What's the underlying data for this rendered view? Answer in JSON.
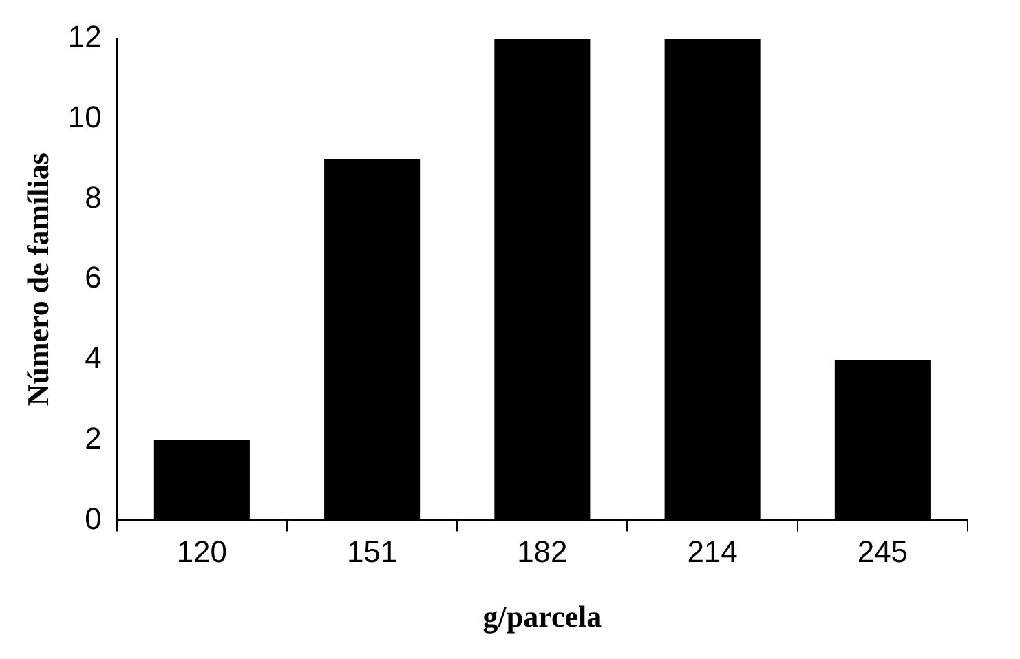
{
  "chart_data": {
    "type": "bar",
    "xlabel": "g/parcela",
    "ylabel": "Número de famílias",
    "categories": [
      "120",
      "151",
      "182",
      "214",
      "245"
    ],
    "values": [
      2,
      9,
      12,
      12,
      4
    ],
    "color": "#000000",
    "ylim": [
      0,
      12
    ],
    "yticks": [
      0,
      2,
      4,
      6,
      8,
      10,
      12
    ],
    "grid": false,
    "legend": false
  }
}
